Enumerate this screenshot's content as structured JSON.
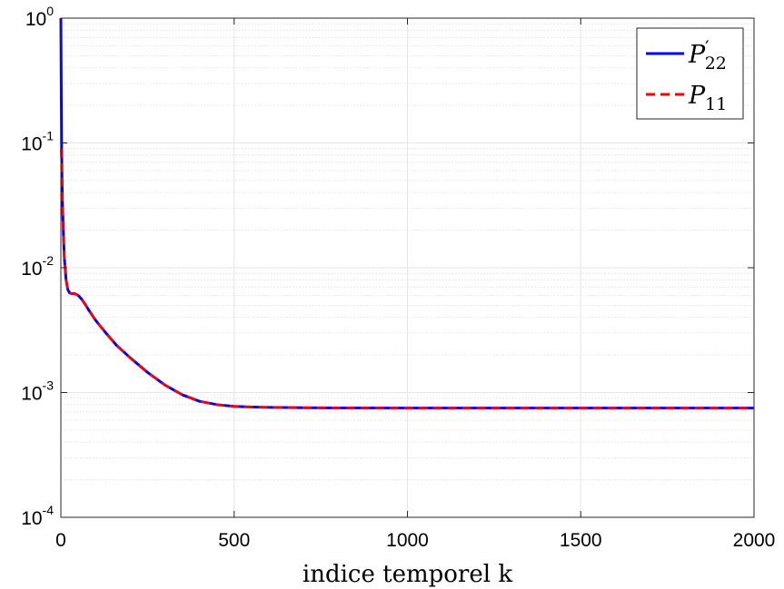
{
  "chart_data": {
    "type": "line",
    "xlabel": "indice temporel k",
    "ylabel": "",
    "xlim": [
      0,
      2000
    ],
    "ylim": [
      0.0001,
      1
    ],
    "yscale": "log",
    "grid": true,
    "minor_grid": true,
    "legend_position": "top-right",
    "x_ticks": [
      "0",
      "500",
      "1000",
      "1500",
      "2000"
    ],
    "y_ticks": [
      {
        "base": "10",
        "exp": "-4"
      },
      {
        "base": "10",
        "exp": "-3"
      },
      {
        "base": "10",
        "exp": "-2"
      },
      {
        "base": "10",
        "exp": "-1"
      },
      {
        "base": "10",
        "exp": "0"
      }
    ],
    "series": [
      {
        "name": "P'22",
        "legend": {
          "base": "P",
          "prime": "′",
          "sub": "22"
        },
        "color": "#0000ff",
        "style": "solid",
        "x": [
          0,
          1,
          2,
          3,
          4,
          5,
          7,
          10,
          15,
          20,
          25,
          30,
          35,
          40,
          50,
          60,
          70,
          80,
          100,
          130,
          160,
          200,
          250,
          300,
          350,
          400,
          450,
          500,
          550,
          600,
          700,
          800,
          1000,
          1200,
          1500,
          1800,
          2000
        ],
        "y": [
          1.0,
          0.3,
          0.1,
          0.06,
          0.04,
          0.03,
          0.02,
          0.012,
          0.008,
          0.0067,
          0.0063,
          0.0062,
          0.0062,
          0.0062,
          0.006,
          0.0056,
          0.0051,
          0.0046,
          0.0038,
          0.003,
          0.0024,
          0.0019,
          0.00145,
          0.00115,
          0.00096,
          0.00085,
          0.0008,
          0.000775,
          0.000765,
          0.00076,
          0.000755,
          0.000752,
          0.00075,
          0.00075,
          0.00075,
          0.00075,
          0.00075
        ]
      },
      {
        "name": "P11",
        "legend": {
          "base": "P",
          "prime": "",
          "sub": "11"
        },
        "color": "#ff0000",
        "style": "dashed",
        "x": [
          1,
          2,
          3,
          4,
          5,
          7,
          10,
          15,
          20,
          25,
          30,
          35,
          40,
          50,
          60,
          70,
          80,
          100,
          130,
          160,
          200,
          250,
          300,
          350,
          400,
          450,
          500,
          550,
          600,
          700,
          800,
          1000,
          1200,
          1500,
          1800,
          2000
        ],
        "y": [
          0.09,
          0.07,
          0.055,
          0.04,
          0.03,
          0.02,
          0.012,
          0.008,
          0.0067,
          0.0063,
          0.0062,
          0.0062,
          0.0062,
          0.006,
          0.0056,
          0.0051,
          0.0046,
          0.0038,
          0.003,
          0.0024,
          0.0019,
          0.00145,
          0.00115,
          0.00096,
          0.00085,
          0.0008,
          0.000775,
          0.000765,
          0.00076,
          0.000755,
          0.000752,
          0.00075,
          0.00075,
          0.00075,
          0.00075,
          0.00075
        ]
      }
    ]
  }
}
